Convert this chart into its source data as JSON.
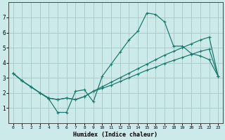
{
  "xlabel": "Humidex (Indice chaleur)",
  "background_color": "#cceaea",
  "grid_color": "#aacccc",
  "line_color": "#1a7a6e",
  "xlim": [
    -0.5,
    23.5
  ],
  "ylim": [
    0,
    8
  ],
  "xticks": [
    0,
    1,
    2,
    3,
    4,
    5,
    6,
    7,
    8,
    9,
    10,
    11,
    12,
    13,
    14,
    15,
    16,
    17,
    18,
    19,
    20,
    21,
    22,
    23
  ],
  "yticks": [
    1,
    2,
    3,
    4,
    5,
    6,
    7
  ],
  "series_main_x": [
    0,
    1,
    2,
    3,
    4,
    5,
    6,
    7,
    8,
    9,
    10,
    11,
    12,
    13,
    14,
    15,
    16,
    17,
    18,
    19,
    20,
    21,
    22,
    23
  ],
  "series_main_y": [
    3.3,
    2.8,
    2.4,
    2.0,
    1.6,
    0.7,
    0.7,
    2.1,
    2.2,
    1.4,
    3.1,
    3.9,
    4.7,
    5.5,
    6.1,
    7.3,
    7.2,
    6.7,
    5.1,
    5.1,
    4.6,
    4.45,
    4.2,
    3.1
  ],
  "series_upper_x": [
    0,
    1,
    2,
    3,
    4,
    5,
    6,
    7,
    8,
    9,
    10,
    11,
    12,
    13,
    14,
    15,
    16,
    17,
    18,
    19,
    20,
    21,
    22,
    23
  ],
  "series_upper_y": [
    3.3,
    2.8,
    2.4,
    2.0,
    1.65,
    1.55,
    1.65,
    1.55,
    1.75,
    2.1,
    2.4,
    2.7,
    3.0,
    3.3,
    3.6,
    3.9,
    4.2,
    4.5,
    4.75,
    5.0,
    5.25,
    5.5,
    5.7,
    3.1
  ],
  "series_lower_x": [
    0,
    1,
    2,
    3,
    4,
    5,
    6,
    7,
    8,
    9,
    10,
    11,
    12,
    13,
    14,
    15,
    16,
    17,
    18,
    19,
    20,
    21,
    22,
    23
  ],
  "series_lower_y": [
    3.3,
    2.8,
    2.4,
    2.0,
    1.65,
    1.55,
    1.65,
    1.55,
    1.75,
    2.1,
    2.3,
    2.5,
    2.75,
    3.0,
    3.25,
    3.5,
    3.7,
    3.95,
    4.15,
    4.35,
    4.55,
    4.75,
    4.9,
    3.1
  ]
}
